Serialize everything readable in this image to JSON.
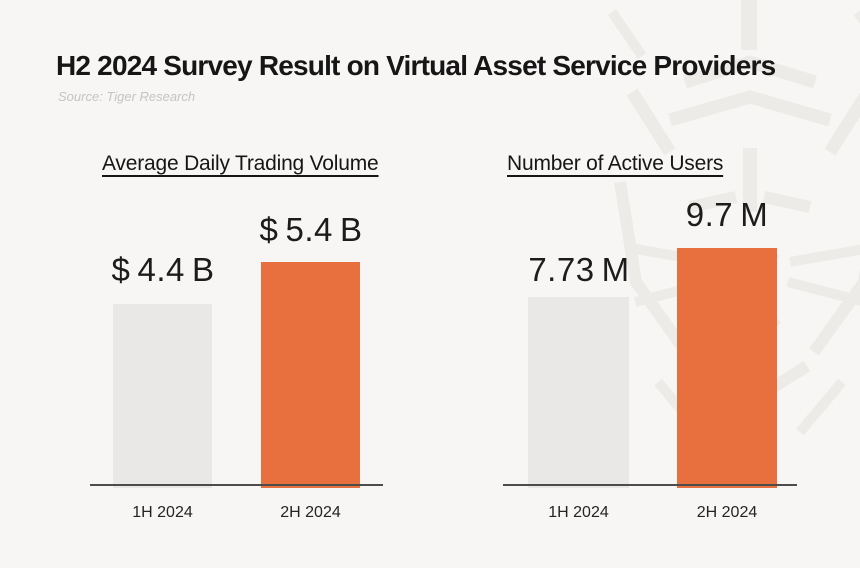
{
  "header": {
    "title": "H2 2024 Survey Result on Virtual Asset Service Providers",
    "source": "Source: Tiger Research"
  },
  "colors": {
    "background": "#f7f6f4",
    "bar_gray": "#e9e8e6",
    "bar_orange": "#e8703e",
    "axis_line": "#4c4c4a",
    "title_ink": "#161616",
    "label_ink": "#1c1c1c",
    "category_ink": "#242424",
    "source_muted": "#c5c4c2",
    "watermark": "#ecebe8"
  },
  "watermark": {
    "icon": "tiger-research-logo"
  },
  "chart_data": [
    {
      "type": "bar",
      "title": "Average Daily Trading Volume",
      "categories": [
        "1H 2024",
        "2H 2024"
      ],
      "values": [
        4.4,
        5.4
      ],
      "value_labels": [
        "$ 4.4 B",
        "$ 5.4 B"
      ],
      "unit": "USD billions",
      "ylim": [
        0,
        5.4
      ],
      "grid": false,
      "legend": "none",
      "bar_colors": [
        "gray",
        "orange"
      ]
    },
    {
      "type": "bar",
      "title": "Number of Active Users",
      "categories": [
        "1H 2024",
        "2H 2024"
      ],
      "values": [
        7.73,
        9.7
      ],
      "value_labels": [
        "7.73 M",
        "9.7 M"
      ],
      "unit": "millions of users",
      "ylim": [
        0,
        9.7
      ],
      "grid": false,
      "legend": "none",
      "bar_colors": [
        "gray",
        "orange"
      ]
    }
  ]
}
